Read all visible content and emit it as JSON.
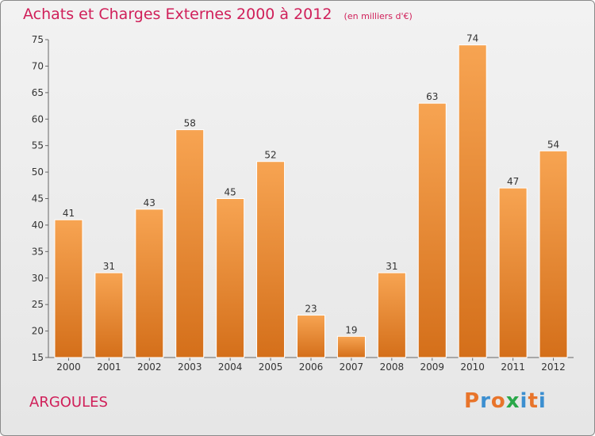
{
  "chart_data": {
    "type": "bar",
    "title": "Achats et Charges Externes 2000 à 2012",
    "subtitle": "(en milliers d'€)",
    "xlabel": "",
    "ylabel": "",
    "categories": [
      "2000",
      "2001",
      "2002",
      "2003",
      "2004",
      "2005",
      "2006",
      "2007",
      "2008",
      "2009",
      "2010",
      "2011",
      "2012"
    ],
    "values": [
      41,
      31,
      43,
      58,
      45,
      52,
      23,
      19,
      31,
      63,
      74,
      47,
      54
    ],
    "ylim": [
      15,
      75
    ],
    "yticks": [
      15,
      20,
      25,
      30,
      35,
      40,
      45,
      50,
      55,
      60,
      65,
      70,
      75
    ],
    "grid": false,
    "bar_color_top": "#f7a452",
    "bar_color_bottom": "#d46f1a"
  },
  "footer": {
    "place": "ARGOULES",
    "logo": "Proxiti"
  },
  "colors": {
    "title": "#d0205a",
    "logo_letters": [
      "#e8742a",
      "#3c8fd0",
      "#e8742a",
      "#2aa84a",
      "#3c8fd0",
      "#e8742a",
      "#3c8fd0"
    ]
  }
}
